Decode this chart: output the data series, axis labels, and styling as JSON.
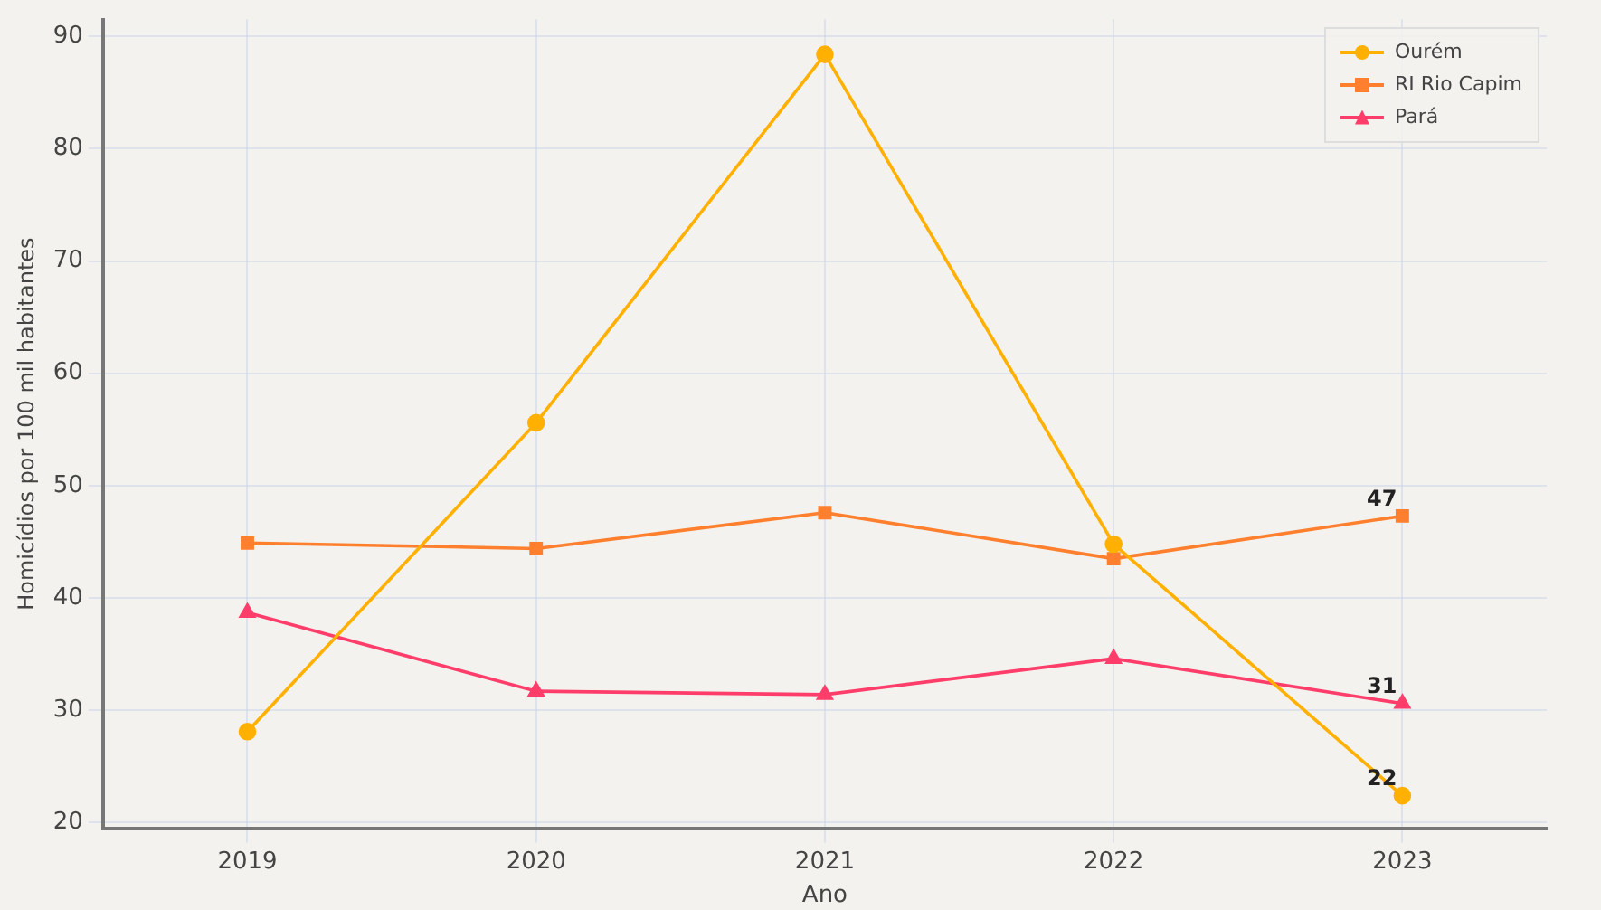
{
  "chart_data": {
    "type": "line",
    "xlabel": "Ano",
    "ylabel": "Homicídios por 100 mil habitantes",
    "categories": [
      "2019",
      "2020",
      "2021",
      "2022",
      "2023"
    ],
    "series": [
      {
        "name": "Ourém",
        "color": "#ffb000",
        "marker": "circle",
        "values": [
          28.1,
          55.6,
          88.4,
          44.8,
          22.4
        ],
        "value_labels": [
          null,
          null,
          null,
          null,
          "22"
        ]
      },
      {
        "name": "RI Rio Capim",
        "color": "#fe7f2d",
        "marker": "square",
        "values": [
          44.9,
          44.4,
          47.6,
          43.5,
          47.3
        ],
        "value_labels": [
          null,
          null,
          null,
          null,
          "47"
        ]
      },
      {
        "name": "Pará",
        "color": "#ff3d6a",
        "marker": "triangle",
        "values": [
          38.7,
          31.7,
          31.4,
          34.6,
          30.6
        ],
        "value_labels": [
          null,
          null,
          null,
          null,
          "31"
        ]
      }
    ],
    "ylim": [
      19.5,
      91.5
    ],
    "yticks": [
      20,
      30,
      40,
      50,
      60,
      70,
      80,
      90
    ],
    "grid": true,
    "legend": "top right"
  }
}
